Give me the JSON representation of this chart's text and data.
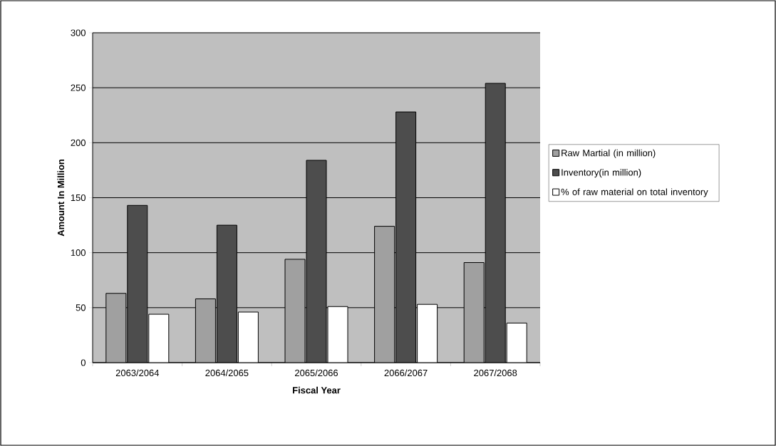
{
  "chart_data": {
    "type": "bar",
    "xlabel": "Fiscal Year",
    "ylabel": "Amount In Million",
    "categories": [
      "2063/2064",
      "2064/2065",
      "2065/2066",
      "2066/2067",
      "2067/2068"
    ],
    "series": [
      {
        "name": "Raw Martial (in million)",
        "color": "#a0a0a0",
        "values": [
          63,
          58,
          94,
          124,
          91
        ]
      },
      {
        "name": "Inventory(in million)",
        "color": "#4d4d4d",
        "values": [
          143,
          125,
          184,
          228,
          254
        ]
      },
      {
        "name": "% of raw material on total inventory",
        "color": "#ffffff",
        "values": [
          44,
          46,
          51,
          53,
          36
        ]
      }
    ],
    "ylim": [
      0,
      300
    ],
    "yticks": [
      0,
      50,
      100,
      150,
      200,
      250,
      300
    ],
    "grid": "y",
    "legend": "right"
  }
}
